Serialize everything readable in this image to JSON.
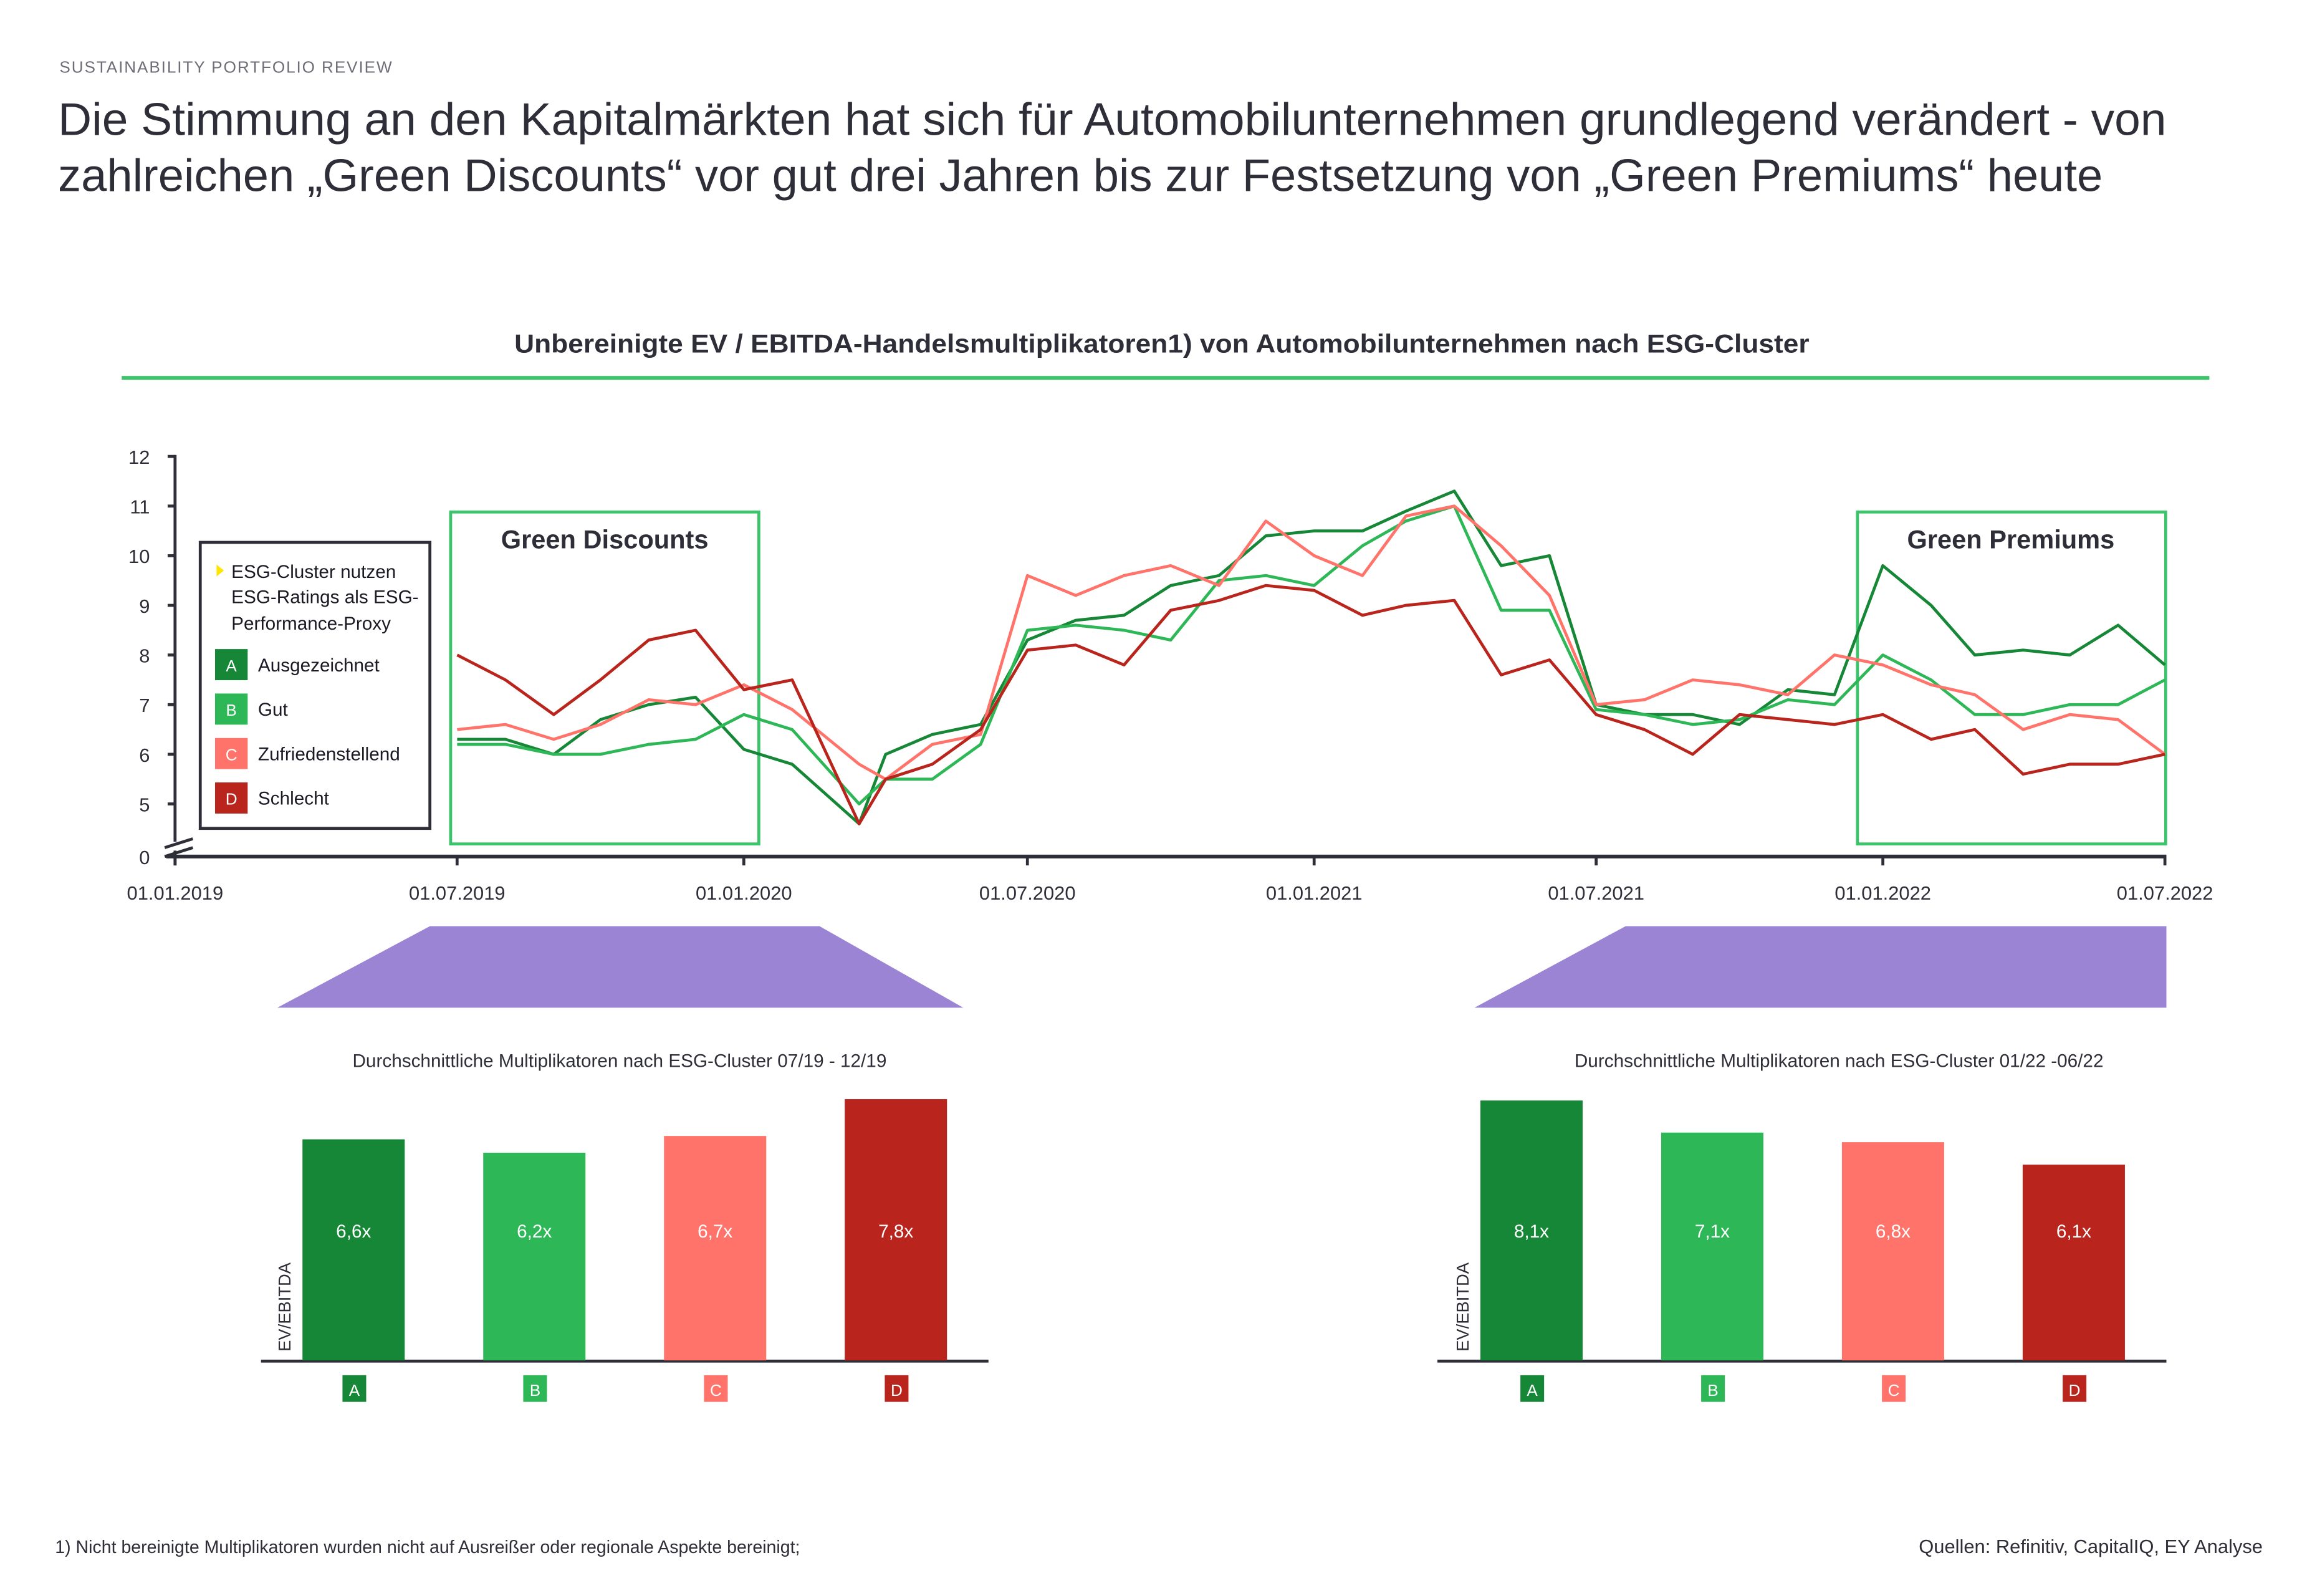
{
  "header": {
    "eyebrow": "SUSTAINABILITY PORTFOLIO REVIEW",
    "title_line1": "Die Stimmung an den Kapitalmärkten hat sich für Automobilunternehmen grundlegend verändert - von",
    "title_line2": "zahlreichen „Green Discounts“ vor gut drei Jahren bis zur Festsetzung von „Green Premiums“ heute"
  },
  "colors": {
    "A": "#168736",
    "B": "#2db757",
    "C": "#ff736a",
    "D": "#b9251c",
    "accent_green": "#3cc46a",
    "purple": "#9b84d4",
    "legend_marker": "#ffe600"
  },
  "legend": {
    "note_icon": "yellow-triangle-bullet",
    "note": [
      "ESG-Cluster nutzen",
      "ESG-Ratings als ESG-",
      "Performance-Proxy"
    ],
    "items": [
      {
        "key": "A",
        "label": "Ausgezeichnet"
      },
      {
        "key": "B",
        "label": "Gut"
      },
      {
        "key": "C",
        "label": "Zufriedenstellend"
      },
      {
        "key": "D",
        "label": "Schlecht"
      }
    ]
  },
  "annotations": {
    "left_box": "Green Discounts",
    "right_box": "Green Premiums"
  },
  "footer": {
    "footnote": "1) Nicht bereinigte Multiplikatoren wurden nicht auf Ausreißer oder regionale Aspekte bereinigt;",
    "sources": "Quellen: Refinitiv, CapitalIQ, EY Analyse"
  },
  "chart_data": [
    {
      "type": "line",
      "title": "Unbereinigte EV / EBITDA-Handelsmultiplikatoren1) von Automobilunternehmen nach ESG-Cluster",
      "y_ticks": [
        "0",
        "5",
        "6",
        "7",
        "8",
        "9",
        "10",
        "11",
        "12"
      ],
      "y_axis_break": [
        0,
        4.5
      ],
      "ylim": [
        0,
        12
      ],
      "x_ticks": [
        "01.01.2019",
        "01.07.2019",
        "01.01.2020",
        "01.07.2020",
        "01.01.2021",
        "01.07.2021",
        "01.01.2022",
        "01.07.2022"
      ],
      "x": [
        "2019-07-01",
        "2019-08-01",
        "2019-09-01",
        "2019-10-01",
        "2019-11-01",
        "2019-12-01",
        "2020-01-01",
        "2020-02-01",
        "2020-03-15",
        "2020-04-01",
        "2020-05-01",
        "2020-06-01",
        "2020-07-01",
        "2020-08-01",
        "2020-09-01",
        "2020-10-01",
        "2020-11-01",
        "2020-12-01",
        "2021-01-01",
        "2021-02-01",
        "2021-03-01",
        "2021-04-01",
        "2021-05-01",
        "2021-06-01",
        "2021-07-01",
        "2021-08-01",
        "2021-09-01",
        "2021-10-01",
        "2021-11-01",
        "2021-12-01",
        "2022-01-01",
        "2022-02-01",
        "2022-03-01",
        "2022-04-01",
        "2022-05-01",
        "2022-06-01",
        "2022-07-01"
      ],
      "series": [
        {
          "name": "Ausgezeichnet",
          "key": "A",
          "values": [
            6.3,
            6.3,
            6.0,
            6.7,
            7.0,
            7.15,
            6.1,
            5.8,
            4.6,
            6.0,
            6.4,
            6.6,
            8.3,
            8.7,
            8.8,
            9.4,
            9.6,
            10.4,
            10.5,
            10.5,
            10.9,
            11.3,
            9.8,
            10.0,
            7.0,
            6.8,
            6.8,
            6.6,
            7.3,
            7.2,
            9.8,
            9.0,
            8.0,
            8.1,
            8.0,
            8.6,
            7.8
          ]
        },
        {
          "name": "Gut",
          "key": "B",
          "values": [
            6.2,
            6.2,
            6.0,
            6.0,
            6.2,
            6.3,
            6.8,
            6.5,
            5.0,
            5.5,
            5.5,
            6.2,
            8.5,
            8.6,
            8.5,
            8.3,
            9.5,
            9.6,
            9.4,
            10.2,
            10.7,
            11.0,
            8.9,
            8.9,
            6.9,
            6.8,
            6.6,
            6.7,
            7.1,
            7.0,
            8.0,
            7.5,
            6.8,
            6.8,
            7.0,
            7.0,
            7.5
          ]
        },
        {
          "name": "Zufriedenstellend",
          "key": "C",
          "values": [
            6.5,
            6.6,
            6.3,
            6.6,
            7.1,
            7.0,
            7.4,
            6.9,
            5.8,
            5.5,
            6.2,
            6.4,
            9.6,
            9.2,
            9.6,
            9.8,
            9.4,
            10.7,
            10.0,
            9.6,
            10.8,
            11.0,
            10.2,
            9.2,
            7.0,
            7.1,
            7.5,
            7.4,
            7.2,
            8.0,
            7.8,
            7.4,
            7.2,
            6.5,
            6.8,
            6.7,
            6.0
          ]
        },
        {
          "name": "Schlecht",
          "key": "D",
          "values": [
            8.0,
            7.5,
            6.8,
            7.5,
            8.3,
            8.5,
            7.3,
            7.5,
            4.6,
            5.5,
            5.8,
            6.5,
            8.1,
            8.2,
            7.8,
            8.9,
            9.1,
            9.4,
            9.3,
            8.8,
            9.0,
            9.1,
            7.6,
            7.9,
            6.8,
            6.5,
            6.0,
            6.8,
            6.7,
            6.6,
            6.8,
            6.3,
            6.5,
            5.6,
            5.8,
            5.8,
            6.0
          ]
        }
      ]
    },
    {
      "type": "bar",
      "title": "Durchschnittliche Multiplikatoren nach ESG-Cluster 07/19 - 12/19",
      "ylabel": "EV/EBITDA",
      "categories": [
        "A",
        "B",
        "C",
        "D"
      ],
      "values": [
        6.6,
        6.2,
        6.7,
        7.8
      ],
      "labels": [
        "6,6x",
        "6,2x",
        "6,7x",
        "7,8x"
      ]
    },
    {
      "type": "bar",
      "title": "Durchschnittliche Multiplikatoren nach ESG-Cluster 01/22 -06/22",
      "ylabel": "EV/EBITDA",
      "categories": [
        "A",
        "B",
        "C",
        "D"
      ],
      "values": [
        8.1,
        7.1,
        6.8,
        6.1
      ],
      "labels": [
        "8,1x",
        "7,1x",
        "6,8x",
        "6,1x"
      ]
    }
  ]
}
